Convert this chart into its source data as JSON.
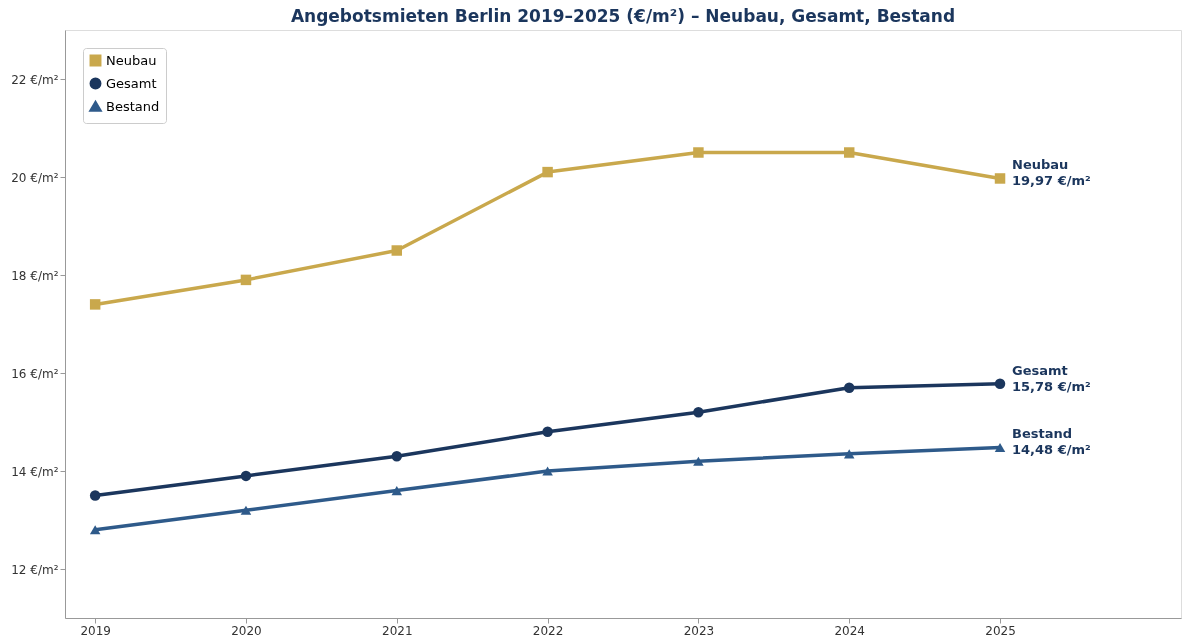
{
  "chart_data": {
    "type": "line",
    "title": "Angebotsmieten Berlin 2019–2025 (€/m²) – Neubau, Gesamt, Bestand",
    "x": [
      2019,
      2020,
      2021,
      2022,
      2023,
      2024,
      2025
    ],
    "series": [
      {
        "name": "Neubau",
        "color": "#c9a84c",
        "marker": "square",
        "values": [
          17.4,
          17.9,
          18.5,
          20.1,
          20.5,
          20.5,
          19.97
        ]
      },
      {
        "name": "Gesamt",
        "color": "#1b365d",
        "marker": "circle",
        "values": [
          13.5,
          13.9,
          14.3,
          14.8,
          15.2,
          15.7,
          15.78
        ]
      },
      {
        "name": "Bestand",
        "color": "#2e5a8a",
        "marker": "triangle",
        "values": [
          12.8,
          13.2,
          13.6,
          14.0,
          14.2,
          14.35,
          14.48
        ]
      }
    ],
    "xlim": [
      2018.8,
      2026.2
    ],
    "xticks": [
      2019,
      2020,
      2021,
      2022,
      2023,
      2024,
      2025
    ],
    "ylim": [
      11,
      23
    ],
    "yticks": [
      {
        "value": 12,
        "label": "12 €/m²"
      },
      {
        "value": 14,
        "label": "14 €/m²"
      },
      {
        "value": 16,
        "label": "16 €/m²"
      },
      {
        "value": 18,
        "label": "18 €/m²"
      },
      {
        "value": 20,
        "label": "20 €/m²"
      },
      {
        "value": 22,
        "label": "22 €/m²"
      }
    ],
    "annotations": [
      "Neubau\n19,97 €/m²",
      "Gesamt\n15,78 €/m²",
      "Bestand\n14,48 €/m²"
    ],
    "legend": "top left",
    "grid": false,
    "line_style": "solid"
  }
}
